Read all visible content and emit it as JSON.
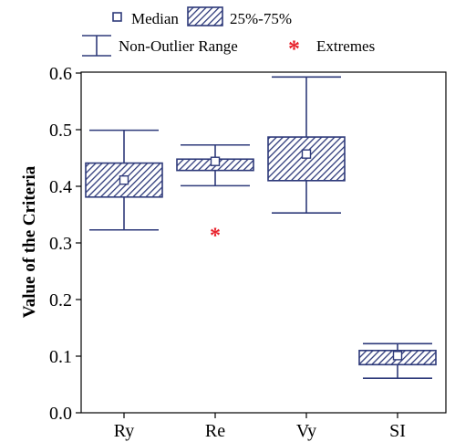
{
  "legend": {
    "median_label": "Median",
    "box_label": "25%-75%",
    "range_label": "Non-Outlier Range",
    "extremes_label": "Extremes",
    "extremes_glyph": "*"
  },
  "chart_data": {
    "type": "box",
    "ylabel": "Value of the Criteria",
    "xlabel": "",
    "ylim": [
      0.0,
      0.6
    ],
    "y_ticks": [
      "0.0",
      "0.1",
      "0.2",
      "0.3",
      "0.4",
      "0.5",
      "0.6"
    ],
    "categories": [
      "Ry",
      "Re",
      "Vy",
      "SI"
    ],
    "boxes": [
      {
        "category": "Ry",
        "min": 0.323,
        "q1": 0.381,
        "median": 0.411,
        "q3": 0.441,
        "max": 0.499,
        "extremes": []
      },
      {
        "category": "Re",
        "min": 0.401,
        "q1": 0.428,
        "median": 0.444,
        "q3": 0.448,
        "max": 0.473,
        "extremes": [
          0.317
        ]
      },
      {
        "category": "Vy",
        "min": 0.353,
        "q1": 0.41,
        "median": 0.457,
        "q3": 0.487,
        "max": 0.593,
        "extremes": []
      },
      {
        "category": "SI",
        "min": 0.061,
        "q1": 0.085,
        "median": 0.101,
        "q3": 0.11,
        "max": 0.122,
        "extremes": []
      }
    ],
    "grid": false,
    "legend_position": "top",
    "colors": {
      "box": "#2e3a7a",
      "hatch": "#2e3a7a",
      "extreme": "#e8202a",
      "axis": "#000000"
    }
  }
}
